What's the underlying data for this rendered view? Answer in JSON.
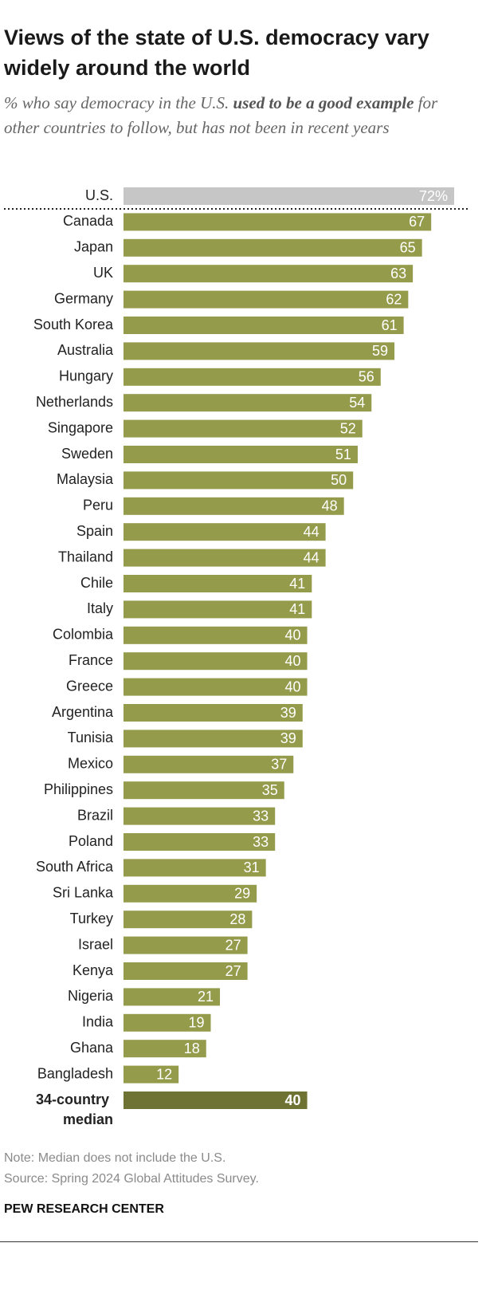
{
  "title": "Views of the state of U.S. democracy vary widely around the world",
  "subtitle": [
    "% who say democracy in the U.S. ",
    "used to be a good example",
    " for other countries to follow, but has not been in recent years"
  ],
  "note": "Note: Median does not include the U.S.",
  "source": "Source: Spring 2024 Global Attitudes Survey.",
  "footer": "PEW RESEARCH CENTER",
  "chart_data": {
    "type": "bar_horizontal",
    "categories": [
      "U.S.",
      "Canada",
      "Japan",
      "UK",
      "Germany",
      "South Korea",
      "Australia",
      "Hungary",
      "Netherlands",
      "Singapore",
      "Sweden",
      "Malaysia",
      "Peru",
      "Spain",
      "Thailand",
      "Chile",
      "Italy",
      "Colombia",
      "France",
      "Greece",
      "Argentina",
      "Tunisia",
      "Mexico",
      "Philippines",
      "Brazil",
      "Poland",
      "South Africa",
      "Sri Lanka",
      "Turkey",
      "Israel",
      "Kenya",
      "Nigeria",
      "India",
      "Ghana",
      "Bangladesh",
      "34-country median"
    ],
    "values": [
      72,
      67,
      65,
      63,
      62,
      61,
      59,
      56,
      54,
      52,
      51,
      50,
      48,
      44,
      44,
      41,
      41,
      40,
      40,
      40,
      39,
      39,
      37,
      35,
      33,
      33,
      31,
      29,
      28,
      27,
      27,
      21,
      19,
      18,
      12,
      40
    ],
    "value_labels": [
      "72%",
      "67",
      "65",
      "63",
      "62",
      "61",
      "59",
      "56",
      "54",
      "52",
      "51",
      "50",
      "48",
      "44",
      "44",
      "41",
      "41",
      "40",
      "40",
      "40",
      "39",
      "39",
      "37",
      "35",
      "33",
      "33",
      "31",
      "29",
      "28",
      "27",
      "27",
      "21",
      "19",
      "18",
      "12",
      "40"
    ],
    "colors": [
      "#c6c6c6",
      "#949b4b",
      "#949b4b",
      "#949b4b",
      "#949b4b",
      "#949b4b",
      "#949b4b",
      "#949b4b",
      "#949b4b",
      "#949b4b",
      "#949b4b",
      "#949b4b",
      "#949b4b",
      "#949b4b",
      "#949b4b",
      "#949b4b",
      "#949b4b",
      "#949b4b",
      "#949b4b",
      "#949b4b",
      "#949b4b",
      "#949b4b",
      "#949b4b",
      "#949b4b",
      "#949b4b",
      "#949b4b",
      "#949b4b",
      "#949b4b",
      "#949b4b",
      "#949b4b",
      "#949b4b",
      "#949b4b",
      "#949b4b",
      "#949b4b",
      "#949b4b",
      "#6e7334"
    ]
  }
}
